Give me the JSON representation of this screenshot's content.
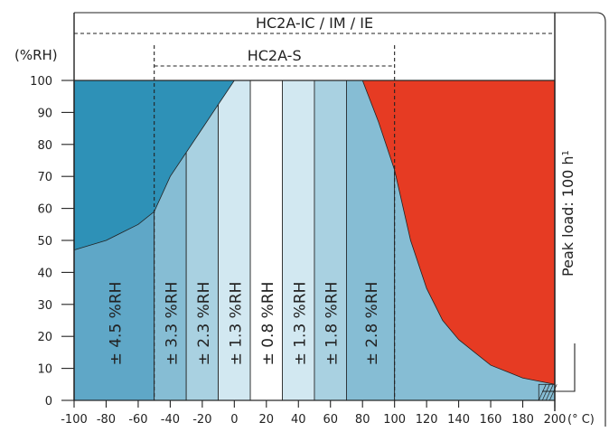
{
  "chart_data": {
    "type": "area",
    "title": "",
    "xlabel": "(° C)",
    "ylabel": "(%RH)",
    "xlim": [
      -100,
      200
    ],
    "ylim": [
      0,
      100
    ],
    "x_ticks": [
      -100,
      -80,
      -60,
      -40,
      -20,
      0,
      20,
      40,
      60,
      80,
      100,
      120,
      140,
      160,
      180,
      200
    ],
    "y_ticks": [
      0,
      10,
      20,
      30,
      40,
      50,
      60,
      70,
      80,
      90,
      100
    ],
    "grid": false,
    "ranges": [
      {
        "label": "HC2A-IC / IM / IE",
        "x": [
          -100,
          200
        ]
      },
      {
        "label": "HC2A-S",
        "x": [
          -50,
          100
        ]
      }
    ],
    "accuracy_bands": [
      {
        "x0": -100,
        "x1": -50,
        "label": "± 4.5 %RH",
        "color": "#5fa7c7"
      },
      {
        "x0": -50,
        "x1": -30,
        "label": "± 3.3 %RH",
        "color": "#86bdd4"
      },
      {
        "x0": -30,
        "x1": -10,
        "label": "± 2.3 %RH",
        "color": "#a9d1e1"
      },
      {
        "x0": -10,
        "x1": 10,
        "label": "± 1.3 %RH",
        "color": "#d2e8f1"
      },
      {
        "x0": 10,
        "x1": 30,
        "label": "± 0.8 %RH",
        "color": "#ffffff"
      },
      {
        "x0": 30,
        "x1": 50,
        "label": "± 1.3 %RH",
        "color": "#d2e8f1"
      },
      {
        "x0": 50,
        "x1": 70,
        "label": "± 1.8 %RH",
        "color": "#a9d1e1"
      },
      {
        "x0": 70,
        "x1": 100,
        "label": "± 2.8 %RH",
        "color": "#86bdd4"
      },
      {
        "x0": 100,
        "x1": 200,
        "label": "",
        "color": "#86bdd4"
      }
    ],
    "upper_left_curve": [
      {
        "x": -100,
        "y": 47
      },
      {
        "x": -80,
        "y": 50
      },
      {
        "x": -60,
        "y": 55
      },
      {
        "x": -50,
        "y": 59
      },
      {
        "x": -40,
        "y": 70
      },
      {
        "x": -20,
        "y": 85
      },
      {
        "x": 0,
        "y": 100
      },
      {
        "x": 10,
        "y": 100
      }
    ],
    "upper_right_curve": [
      {
        "x": 80,
        "y": 100
      },
      {
        "x": 90,
        "y": 87
      },
      {
        "x": 100,
        "y": 72
      },
      {
        "x": 110,
        "y": 50
      },
      {
        "x": 120,
        "y": 35
      },
      {
        "x": 130,
        "y": 25
      },
      {
        "x": 140,
        "y": 19
      },
      {
        "x": 150,
        "y": 15
      },
      {
        "x": 160,
        "y": 11
      },
      {
        "x": 170,
        "y": 9
      },
      {
        "x": 180,
        "y": 7
      },
      {
        "x": 200,
        "y": 5
      }
    ],
    "peak_load_label": "Peak load: 100 h",
    "peak_load_superscript": "1",
    "colors": {
      "left_region": "#2e91b7",
      "right_region": "#e63b23",
      "base_blue": "#86bdd4",
      "axis": "#222222"
    }
  }
}
